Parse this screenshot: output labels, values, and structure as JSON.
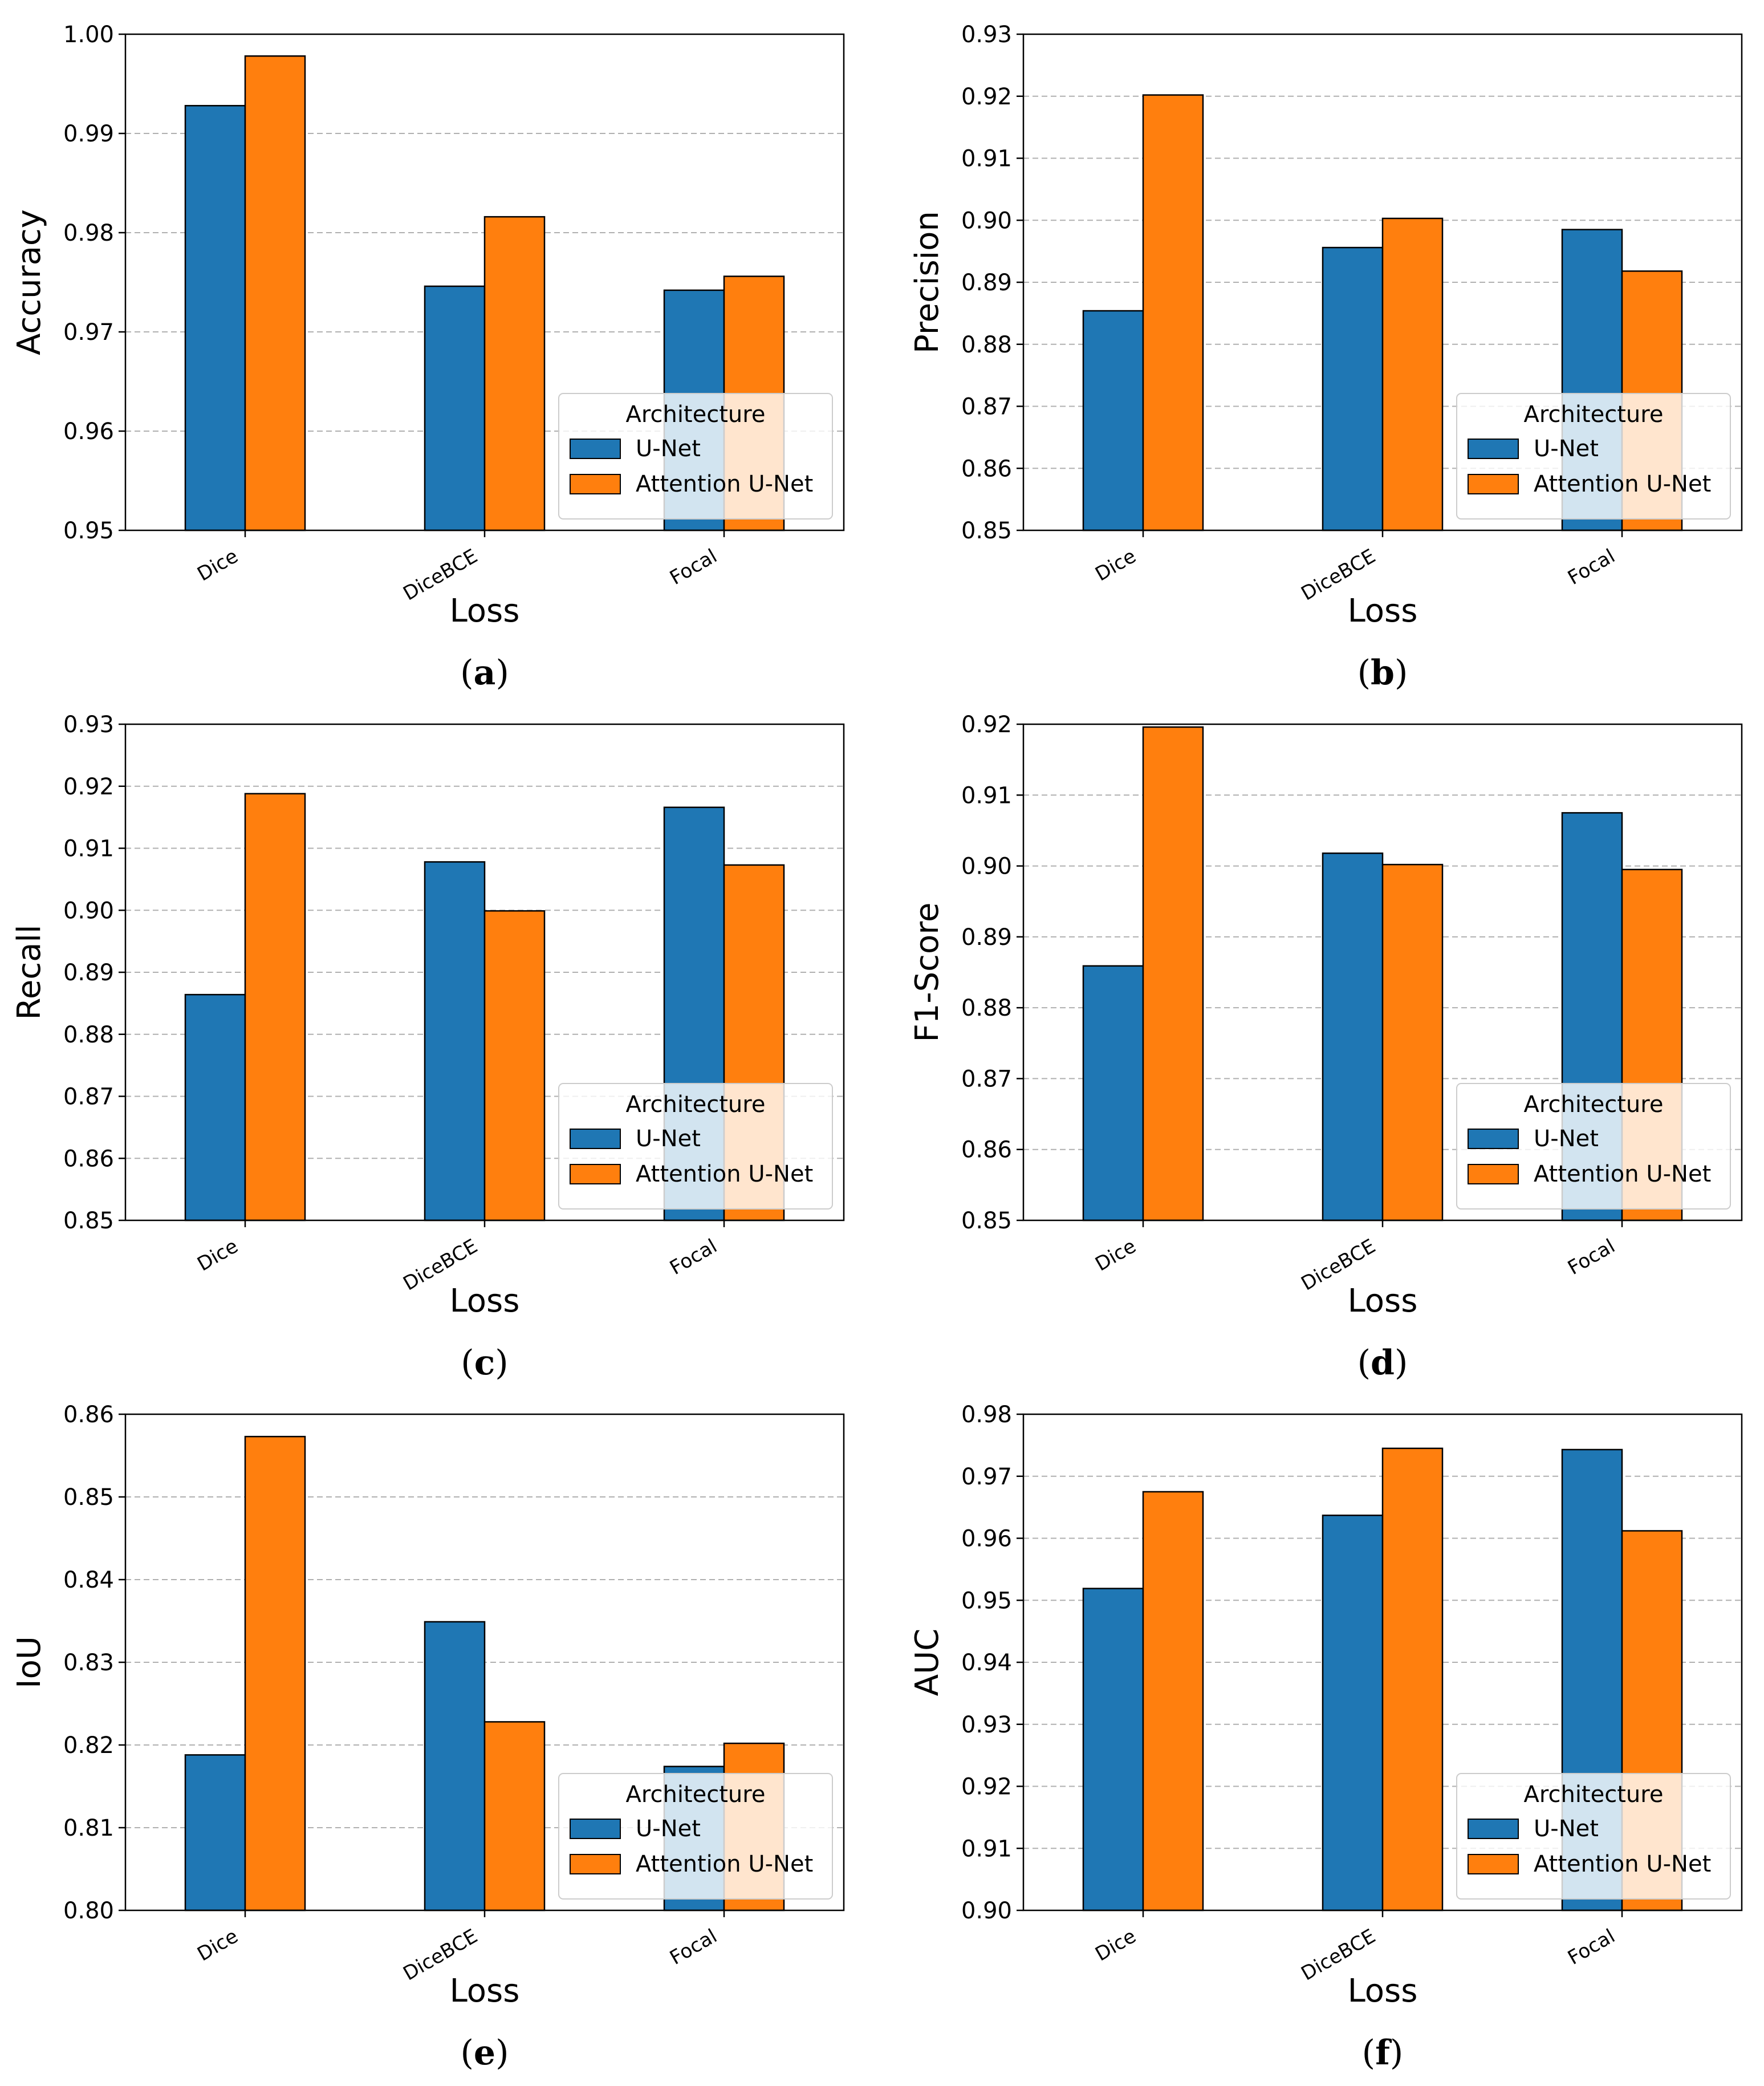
{
  "chart_data": [
    {
      "type": "bar",
      "panel": "(a)",
      "panel_letter": "a",
      "categories": [
        "Dice",
        "DiceBCE",
        "Focal"
      ],
      "series": [
        {
          "name": "U-Net",
          "values": [
            0.9928,
            0.9746,
            0.9742
          ]
        },
        {
          "name": "Attention U-Net",
          "values": [
            0.9978,
            0.9816,
            0.9756
          ]
        }
      ],
      "xlabel": "Loss",
      "ylabel": "Accuracy",
      "ylim": [
        0.95,
        1.0
      ],
      "yticks": [
        "0.95",
        "0.96",
        "0.97",
        "0.98",
        "0.99",
        "1.00"
      ],
      "legend_title": "Architecture",
      "legend_position": "lower right",
      "grid": "y dashed"
    },
    {
      "type": "bar",
      "panel": "(b)",
      "panel_letter": "b",
      "categories": [
        "Dice",
        "DiceBCE",
        "Focal"
      ],
      "series": [
        {
          "name": "U-Net",
          "values": [
            0.8854,
            0.8956,
            0.8985
          ]
        },
        {
          "name": "Attention U-Net",
          "values": [
            0.9202,
            0.9003,
            0.8918
          ]
        }
      ],
      "xlabel": "Loss",
      "ylabel": "Precision",
      "ylim": [
        0.85,
        0.93
      ],
      "yticks": [
        "0.85",
        "0.86",
        "0.87",
        "0.88",
        "0.89",
        "0.90",
        "0.91",
        "0.92",
        "0.93"
      ],
      "legend_title": "Architecture",
      "legend_position": "lower right",
      "grid": "y dashed"
    },
    {
      "type": "bar",
      "panel": "(c)",
      "panel_letter": "c",
      "categories": [
        "Dice",
        "DiceBCE",
        "Focal"
      ],
      "series": [
        {
          "name": "U-Net",
          "values": [
            0.8864,
            0.9078,
            0.9166
          ]
        },
        {
          "name": "Attention U-Net",
          "values": [
            0.9188,
            0.8999,
            0.9073
          ]
        }
      ],
      "xlabel": "Loss",
      "ylabel": "Recall",
      "ylim": [
        0.85,
        0.93
      ],
      "yticks": [
        "0.85",
        "0.86",
        "0.87",
        "0.88",
        "0.89",
        "0.90",
        "0.91",
        "0.92",
        "0.93"
      ],
      "legend_title": "Architecture",
      "legend_position": "lower right",
      "grid": "y dashed"
    },
    {
      "type": "bar",
      "panel": "(d)",
      "panel_letter": "d",
      "categories": [
        "Dice",
        "DiceBCE",
        "Focal"
      ],
      "series": [
        {
          "name": "U-Net",
          "values": [
            0.8859,
            0.9018,
            0.9075
          ]
        },
        {
          "name": "Attention U-Net",
          "values": [
            0.9196,
            0.9002,
            0.8995
          ]
        }
      ],
      "xlabel": "Loss",
      "ylabel": "F1-Score",
      "ylim": [
        0.85,
        0.92
      ],
      "yticks": [
        "0.85",
        "0.86",
        "0.87",
        "0.88",
        "0.89",
        "0.90",
        "0.91",
        "0.92"
      ],
      "legend_title": "Architecture",
      "legend_position": "lower right",
      "grid": "y dashed"
    },
    {
      "type": "bar",
      "panel": "(e)",
      "panel_letter": "e",
      "categories": [
        "Dice",
        "DiceBCE",
        "Focal"
      ],
      "series": [
        {
          "name": "U-Net",
          "values": [
            0.8188,
            0.8349,
            0.8174
          ]
        },
        {
          "name": "Attention U-Net",
          "values": [
            0.8573,
            0.8228,
            0.8202
          ]
        }
      ],
      "xlabel": "Loss",
      "ylabel": "IoU",
      "ylim": [
        0.8,
        0.86
      ],
      "yticks": [
        "0.80",
        "0.81",
        "0.82",
        "0.83",
        "0.84",
        "0.85",
        "0.86"
      ],
      "legend_title": "Architecture",
      "legend_position": "lower right",
      "grid": "y dashed"
    },
    {
      "type": "bar",
      "panel": "(f)",
      "panel_letter": "f",
      "categories": [
        "Dice",
        "DiceBCE",
        "Focal"
      ],
      "series": [
        {
          "name": "U-Net",
          "values": [
            0.9519,
            0.9637,
            0.9743
          ]
        },
        {
          "name": "Attention U-Net",
          "values": [
            0.9675,
            0.9745,
            0.9612
          ]
        }
      ],
      "xlabel": "Loss",
      "ylabel": "AUC",
      "ylim": [
        0.9,
        0.98
      ],
      "yticks": [
        "0.90",
        "0.91",
        "0.92",
        "0.93",
        "0.94",
        "0.95",
        "0.96",
        "0.97",
        "0.98"
      ],
      "legend_title": "Architecture",
      "legend_position": "lower right",
      "grid": "y dashed"
    }
  ],
  "colors": {
    "U-Net": "#1f77b4",
    "Attention U-Net": "#ff7f0e",
    "bar_edge": "#000000",
    "grid": "#b0b0b0"
  }
}
